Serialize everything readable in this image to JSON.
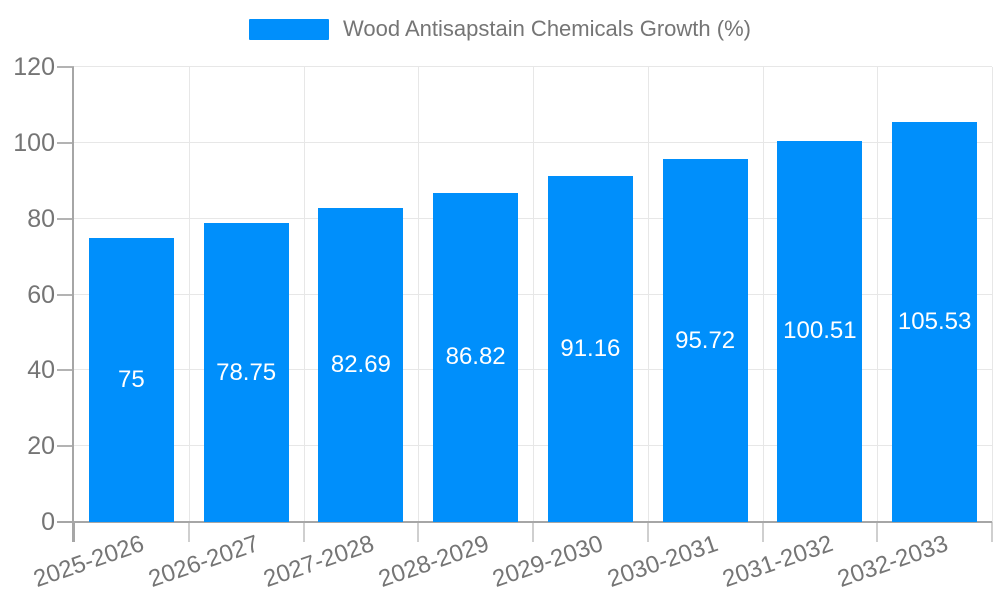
{
  "chart_data": {
    "type": "bar",
    "title": "Wood Antisapstain Chemicals Growth (%)",
    "categories": [
      "2025-2026",
      "2026-2027",
      "2027-2028",
      "2028-2029",
      "2029-2030",
      "2030-2031",
      "2031-2032",
      "2032-2033"
    ],
    "values": [
      75,
      78.75,
      82.69,
      86.82,
      91.16,
      95.72,
      100.51,
      105.53
    ],
    "value_labels": [
      "75",
      "78.75",
      "82.69",
      "86.82",
      "91.16",
      "95.72",
      "100.51",
      "105.53"
    ],
    "ylim": [
      0,
      120
    ],
    "yticks": [
      0,
      20,
      40,
      60,
      80,
      100,
      120
    ],
    "grid": "on",
    "legend_position": "top-center",
    "xlabel": "",
    "ylabel": "",
    "colors": {
      "bar": "#008FFB",
      "bar_value_text": "#ffffff",
      "axis_line": "#a6a6a6",
      "grid_line": "#e7e7e7",
      "tick_text": "#757575",
      "legend_text": "#757575",
      "background": "#ffffff"
    }
  }
}
